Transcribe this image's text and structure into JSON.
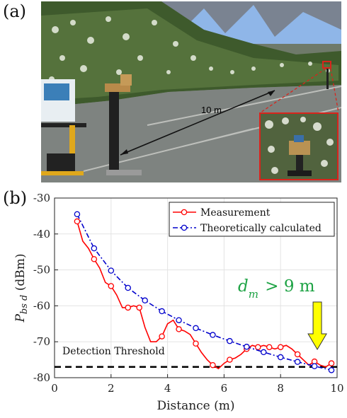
{
  "panels": {
    "a": "(a)",
    "b": "(b)"
  },
  "photo": {
    "distance_label": "10 m"
  },
  "chart_data": {
    "type": "line",
    "xlabel": "Distance (m)",
    "ylabel": "P_bs d (dBm)",
    "xlim": [
      0,
      10
    ],
    "ylim": [
      -80,
      -30
    ],
    "xticks": [
      0,
      2,
      4,
      6,
      8,
      10
    ],
    "yticks": [
      -30,
      -40,
      -50,
      -60,
      -70,
      -80
    ],
    "grid": true,
    "legend_position": "top-right",
    "series": [
      {
        "name": "Measurement",
        "color": "#ff0000",
        "style": "solid",
        "markers": true,
        "x": [
          0.8,
          1.0,
          1.2,
          1.4,
          1.6,
          1.8,
          2.0,
          2.2,
          2.4,
          2.6,
          2.8,
          3.0,
          3.2,
          3.4,
          3.6,
          3.8,
          4.0,
          4.2,
          4.4,
          4.6,
          4.8,
          5.0,
          5.2,
          5.4,
          5.6,
          5.8,
          6.0,
          6.2,
          6.4,
          6.6,
          6.8,
          7.0,
          7.2,
          7.4,
          7.6,
          7.8,
          8.0,
          8.2,
          8.4,
          8.6,
          8.8,
          9.0,
          9.2,
          9.4,
          9.6,
          9.8
        ],
        "y": [
          -36.5,
          -42,
          -44,
          -47,
          -49.5,
          -53.5,
          -54.5,
          -57,
          -60.5,
          -60.5,
          -60,
          -60.5,
          -66,
          -70,
          -70,
          -68.5,
          -65,
          -64,
          -66.5,
          -67,
          -68,
          -70.5,
          -73,
          -75,
          -76.5,
          -77.5,
          -76,
          -75,
          -74.5,
          -73.5,
          -72,
          -71,
          -71.5,
          -71,
          -71.5,
          -72,
          -71.5,
          -71,
          -72,
          -73.5,
          -75,
          -76.5,
          -75.5,
          -76.5,
          -77,
          -76
        ]
      },
      {
        "name": "Theoretically calculated",
        "color": "#0000cc",
        "style": "dash-dot",
        "markers": true,
        "x": [
          0.8,
          1.4,
          2.0,
          2.6,
          3.2,
          3.8,
          4.4,
          5.0,
          5.6,
          6.2,
          6.8,
          7.4,
          8.0,
          8.6,
          9.2,
          9.8
        ],
        "y": [
          -34.5,
          -44,
          -50.2,
          -55,
          -58.5,
          -61.5,
          -64,
          -66.2,
          -68.1,
          -69.8,
          -71.4,
          -72.9,
          -74.3,
          -75.6,
          -76.8,
          -77.9
        ]
      }
    ],
    "reference_line": {
      "label": "Detection Threshold",
      "y": -77,
      "style": "dashed",
      "color": "#000000"
    },
    "annotation": {
      "text_main": "d",
      "text_sub": "m",
      "text_rest": " > 9 m",
      "color": "#1ea345",
      "arrow_color": "#ffff00",
      "arrow_x": 9.3
    }
  }
}
